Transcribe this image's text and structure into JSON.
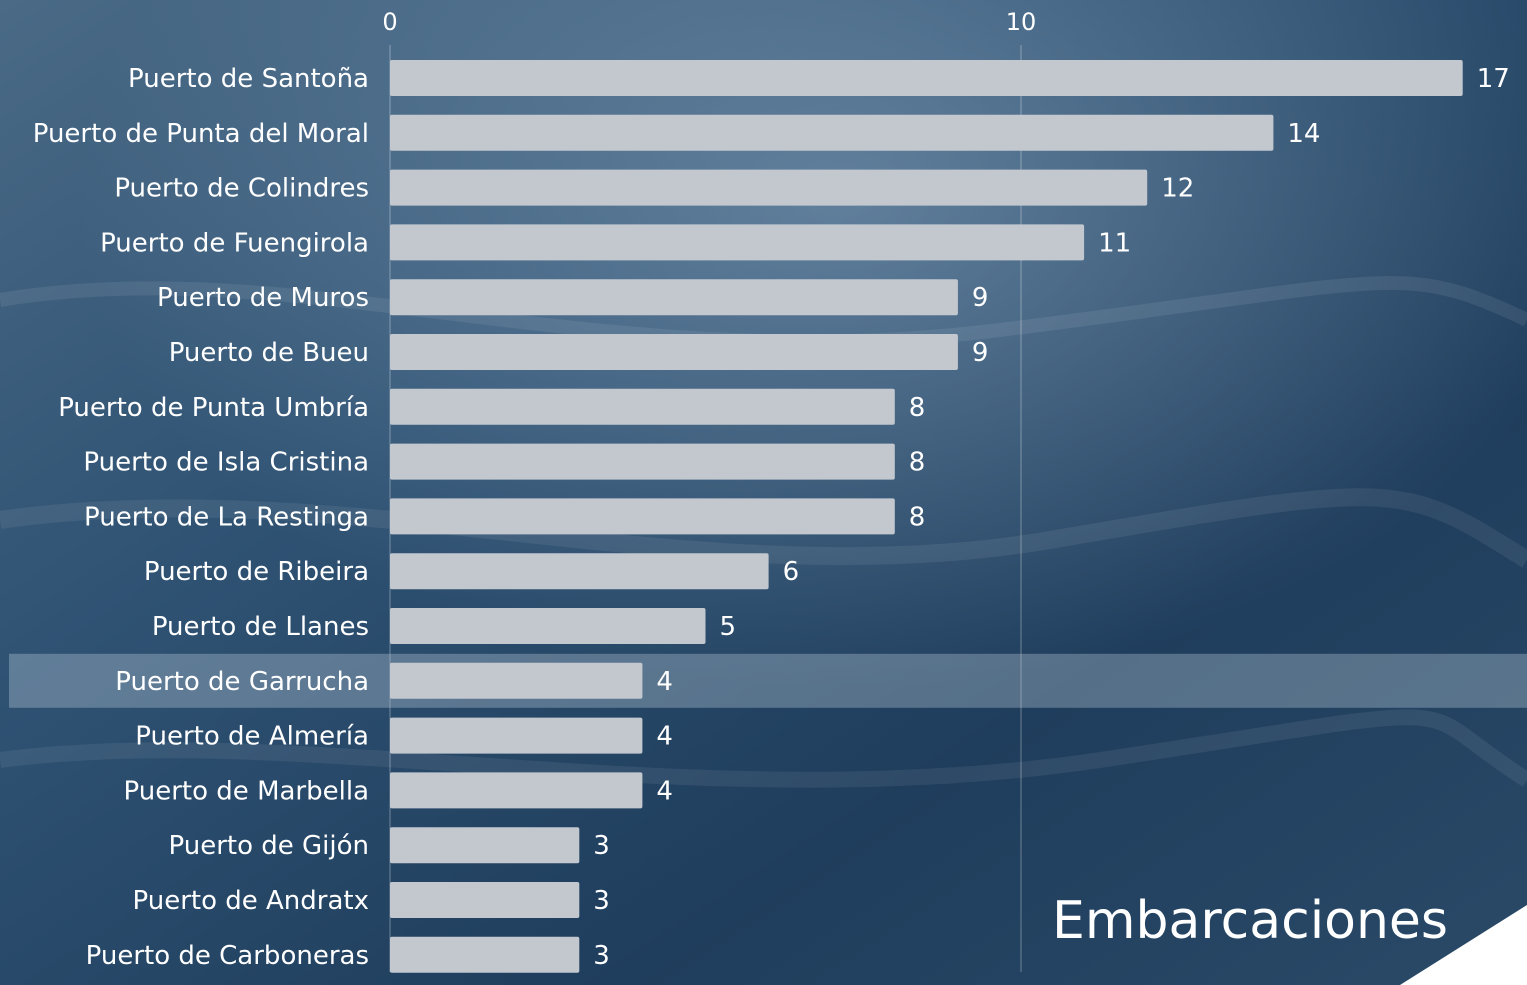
{
  "chart_data": {
    "type": "bar",
    "orientation": "horizontal",
    "categories": [
      "Puerto de Santoña",
      "Puerto de Punta del Moral",
      "Puerto de Colindres",
      "Puerto de Fuengirola",
      "Puerto de Muros",
      "Puerto de Bueu",
      "Puerto de Punta Umbría",
      "Puerto de Isla Cristina",
      "Puerto de La Restinga",
      "Puerto de Ribeira",
      "Puerto de Llanes",
      "Puerto de Garrucha",
      "Puerto de Almería",
      "Puerto de Marbella",
      "Puerto de Gijón",
      "Puerto de Andratx",
      "Puerto de Carboneras"
    ],
    "series": [
      {
        "name": "Embarcaciones",
        "values": [
          17,
          14,
          12,
          11,
          9,
          9,
          8,
          8,
          8,
          6,
          5,
          4,
          4,
          4,
          3,
          3,
          3
        ]
      }
    ],
    "x_ticks": [
      "0",
      "10"
    ],
    "xlim": [
      0,
      17
    ],
    "highlighted_category": "Puerto de Garrucha",
    "grid": true,
    "legend_position": "bottom-right",
    "colors": {
      "bar": "#c3c8cf",
      "text": "#ffffff",
      "background": "#2d4d6e"
    }
  }
}
